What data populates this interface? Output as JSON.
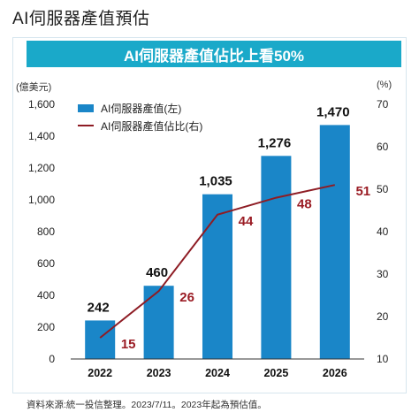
{
  "page_title": "AI伺服器產值預估",
  "banner": "AI伺服器產值佔比上看50%",
  "units": {
    "left": "(億美元)",
    "right": "(%)"
  },
  "legend": {
    "bar": "AI伺服器產值(左)",
    "line": "AI伺服器產值佔比(右)"
  },
  "source": "資料來源:統一投信整理。2023/7/11。2023年起為預估值。",
  "colors": {
    "banner": "#1aa9c9",
    "bar": "#1a86c8",
    "line": "#8e1c24",
    "line_label": "#9a1c24"
  },
  "chart_data": {
    "type": "bar",
    "categories": [
      "2022",
      "2023",
      "2024",
      "2025",
      "2026"
    ],
    "series": [
      {
        "name": "AI伺服器產值(左)",
        "type": "bar",
        "axis": "left",
        "values": [
          242,
          460,
          1035,
          1276,
          1470
        ],
        "labels": [
          "242",
          "460",
          "1,035",
          "1,276",
          "1,470"
        ]
      },
      {
        "name": "AI伺服器產值佔比(右)",
        "type": "line",
        "axis": "right",
        "values": [
          15,
          26,
          44,
          48,
          51
        ],
        "labels": [
          "15",
          "26",
          "44",
          "48",
          "51"
        ]
      }
    ],
    "y_left": {
      "label": "(億美元)",
      "ylim": [
        0,
        1600
      ],
      "ticks": [
        "0",
        "200",
        "400",
        "600",
        "800",
        "1,000",
        "1,200",
        "1,400",
        "1,600"
      ]
    },
    "y_right": {
      "label": "(%)",
      "ylim": [
        10,
        70
      ],
      "ticks": [
        "10",
        "20",
        "30",
        "40",
        "50",
        "60",
        "70"
      ]
    },
    "grid": false,
    "legend_position": "top-left"
  }
}
